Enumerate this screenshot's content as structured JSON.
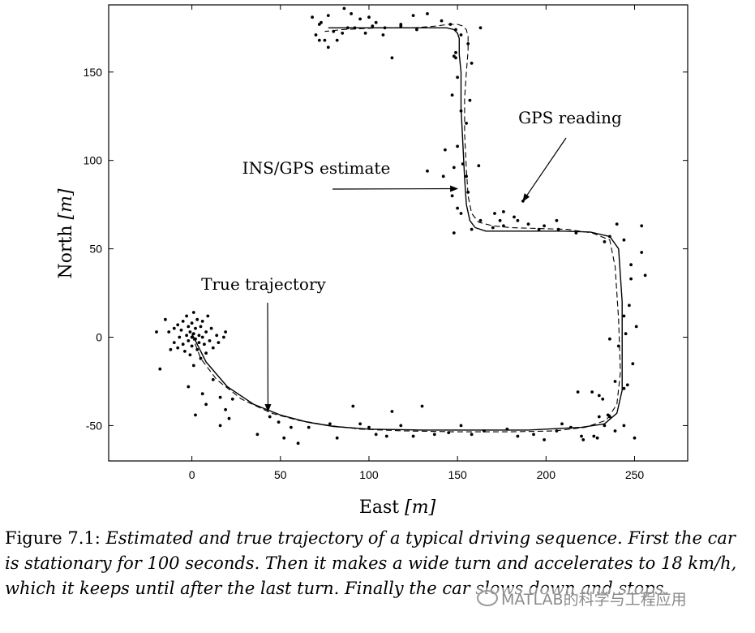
{
  "chart_data": {
    "type": "line",
    "xlabel_text": "East ",
    "xlabel_unit": "[m]",
    "ylabel_text": "North ",
    "ylabel_unit": "[m]",
    "xlim": [
      -47,
      280
    ],
    "ylim": [
      -70,
      188
    ],
    "xticks": [
      0,
      50,
      100,
      150,
      200,
      250
    ],
    "yticks": [
      -50,
      0,
      50,
      100,
      150
    ],
    "grid": false,
    "series": [
      {
        "name": "True trajectory",
        "style": "solid",
        "x": [
          0,
          8,
          20,
          35,
          50,
          65,
          80,
          100,
          130,
          160,
          190,
          220,
          233,
          240,
          243,
          243,
          243,
          241,
          236,
          225,
          210,
          195,
          180,
          166,
          160,
          157,
          155,
          154,
          153,
          152,
          152,
          151,
          151,
          151,
          150,
          148,
          144,
          135,
          115,
          95,
          77
        ],
        "y": [
          2,
          -14,
          -28,
          -38,
          -44,
          -48,
          -50.5,
          -52,
          -52.5,
          -52.5,
          -52.5,
          -51,
          -49,
          -43,
          -30,
          -10,
          20,
          50,
          57,
          59.5,
          60,
          60,
          60,
          60,
          62,
          66,
          75,
          90,
          110,
          130,
          150,
          160,
          166,
          169,
          172,
          174,
          175,
          175,
          175,
          175,
          175
        ]
      },
      {
        "name": "INS/GPS estimate",
        "style": "dashed",
        "x": [
          0,
          5,
          14,
          28,
          45,
          60,
          78,
          95,
          120,
          150,
          180,
          205,
          222,
          234,
          240,
          242,
          241,
          239,
          236,
          226,
          212,
          196,
          180,
          170,
          162,
          158,
          156,
          155,
          154,
          154,
          155,
          156,
          156,
          155,
          153,
          150,
          145,
          138,
          125,
          105,
          85,
          75
        ],
        "y": [
          1,
          -12,
          -24,
          -35,
          -43,
          -47,
          -50,
          -52,
          -53,
          -53.5,
          -53.5,
          -53,
          -51,
          -47,
          -38,
          -20,
          10,
          40,
          55,
          59,
          61,
          61.5,
          62,
          63,
          65,
          70,
          80,
          95,
          115,
          135,
          150,
          162,
          170,
          174,
          176,
          177,
          177,
          176,
          175,
          175,
          174,
          173
        ]
      },
      {
        "name": "GPS reading",
        "style": "dots",
        "points": [
          [
            -20,
            3
          ],
          [
            -18,
            -18
          ],
          [
            -15,
            10
          ],
          [
            -13,
            3
          ],
          [
            -12,
            -7
          ],
          [
            -10,
            5
          ],
          [
            -10,
            -3
          ],
          [
            -8,
            7
          ],
          [
            -8,
            -6
          ],
          [
            -7,
            0
          ],
          [
            -6,
            4
          ],
          [
            -5,
            -4
          ],
          [
            -5,
            9
          ],
          [
            -4,
            -8
          ],
          [
            -3,
            1
          ],
          [
            -3,
            12
          ],
          [
            -2,
            -2
          ],
          [
            -2,
            6
          ],
          [
            -1,
            -10
          ],
          [
            -1,
            3
          ],
          [
            0,
            0
          ],
          [
            0,
            8
          ],
          [
            0,
            -5
          ],
          [
            1,
            2
          ],
          [
            1,
            14
          ],
          [
            1,
            -16
          ],
          [
            2,
            -1
          ],
          [
            2,
            5
          ],
          [
            3,
            -7
          ],
          [
            3,
            10
          ],
          [
            4,
            1
          ],
          [
            4,
            -3
          ],
          [
            5,
            6
          ],
          [
            5,
            -12
          ],
          [
            6,
            0
          ],
          [
            6,
            9
          ],
          [
            7,
            -4
          ],
          [
            8,
            3
          ],
          [
            8,
            -9
          ],
          [
            9,
            12
          ],
          [
            10,
            -2
          ],
          [
            11,
            5
          ],
          [
            12,
            -6
          ],
          [
            14,
            1
          ],
          [
            15,
            -3
          ],
          [
            18,
            0
          ],
          [
            19,
            3
          ],
          [
            -2,
            -28
          ],
          [
            2,
            -44
          ],
          [
            6,
            -32
          ],
          [
            8,
            -38
          ],
          [
            12,
            -24
          ],
          [
            16,
            -34
          ],
          [
            16,
            -50
          ],
          [
            19,
            -41
          ],
          [
            21,
            -46
          ],
          [
            23,
            -35
          ],
          [
            37,
            -55
          ],
          [
            44,
            -45
          ],
          [
            49,
            -48
          ],
          [
            52,
            -57
          ],
          [
            56,
            -51
          ],
          [
            60,
            -60
          ],
          [
            66,
            -51
          ],
          [
            78,
            -49
          ],
          [
            82,
            -57
          ],
          [
            95,
            -49
          ],
          [
            100,
            -51
          ],
          [
            104,
            -55
          ],
          [
            110,
            -56
          ],
          [
            118,
            -50
          ],
          [
            125,
            -56
          ],
          [
            137,
            -55
          ],
          [
            145,
            -54
          ],
          [
            152,
            -50
          ],
          [
            158,
            -55
          ],
          [
            165,
            -53
          ],
          [
            178,
            -52
          ],
          [
            184,
            -56
          ],
          [
            193,
            -55
          ],
          [
            199,
            -58
          ],
          [
            206,
            -53
          ],
          [
            209,
            -49
          ],
          [
            214,
            -51
          ],
          [
            220,
            -56
          ],
          [
            227,
            -56
          ],
          [
            233,
            -50
          ],
          [
            239,
            -53
          ],
          [
            244,
            -50
          ],
          [
            250,
            -57
          ],
          [
            91,
            -39
          ],
          [
            113,
            -42
          ],
          [
            130,
            -39
          ],
          [
            218,
            -31
          ],
          [
            226,
            -31
          ],
          [
            235,
            -44
          ],
          [
            229,
            -57
          ],
          [
            221,
            -58
          ],
          [
            236,
            -45
          ],
          [
            230,
            -45
          ],
          [
            239,
            -25
          ],
          [
            232,
            -35
          ],
          [
            244,
            -29
          ],
          [
            230,
            -33
          ],
          [
            246,
            -27
          ],
          [
            249,
            -15
          ],
          [
            241,
            -5
          ],
          [
            245,
            2
          ],
          [
            244,
            12
          ],
          [
            236,
            -1
          ],
          [
            247,
            18
          ],
          [
            248,
            33
          ],
          [
            251,
            6
          ],
          [
            254,
            48
          ],
          [
            254,
            63
          ],
          [
            248,
            41
          ],
          [
            256,
            35
          ],
          [
            244,
            55
          ],
          [
            240,
            64
          ],
          [
            236,
            57
          ],
          [
            233,
            54
          ],
          [
            217,
            59
          ],
          [
            207,
            61
          ],
          [
            199,
            63
          ],
          [
            196,
            61
          ],
          [
            190,
            64
          ],
          [
            184,
            66
          ],
          [
            176,
            63
          ],
          [
            170,
            62
          ],
          [
            163,
            66
          ],
          [
            158,
            61
          ],
          [
            148,
            59
          ],
          [
            152,
            70
          ],
          [
            182,
            68
          ],
          [
            171,
            70
          ],
          [
            187,
            77
          ],
          [
            174,
            66
          ],
          [
            176,
            71
          ],
          [
            206,
            66
          ],
          [
            150,
            73
          ],
          [
            156,
            82
          ],
          [
            147,
            80
          ],
          [
            155,
            91
          ],
          [
            153,
            98
          ],
          [
            143,
            106
          ],
          [
            133,
            94
          ],
          [
            150,
            108
          ],
          [
            155,
            121
          ],
          [
            152,
            128
          ],
          [
            147,
            137
          ],
          [
            157,
            134
          ],
          [
            150,
            147
          ],
          [
            149,
            158
          ],
          [
            158,
            155
          ],
          [
            163,
            175
          ],
          [
            149,
            161
          ],
          [
            162,
            97
          ],
          [
            142,
            91
          ],
          [
            148,
            96
          ],
          [
            73,
            178
          ],
          [
            68,
            181
          ],
          [
            72,
            177
          ],
          [
            77,
            182
          ],
          [
            86,
            186
          ],
          [
            90,
            183
          ],
          [
            95,
            180
          ],
          [
            100,
            181
          ],
          [
            104,
            178
          ],
          [
            109,
            175
          ],
          [
            118,
            177
          ],
          [
            125,
            182
          ],
          [
            133,
            183
          ],
          [
            141,
            179
          ],
          [
            146,
            177
          ],
          [
            149,
            174
          ],
          [
            152,
            171
          ],
          [
            156,
            166
          ],
          [
            70,
            171
          ],
          [
            72,
            168
          ],
          [
            75,
            168
          ],
          [
            77,
            164
          ],
          [
            80,
            173
          ],
          [
            82,
            168
          ],
          [
            85,
            172
          ],
          [
            88,
            175
          ],
          [
            92,
            175
          ],
          [
            98,
            172
          ],
          [
            102,
            176
          ],
          [
            108,
            171
          ],
          [
            113,
            158
          ],
          [
            118,
            176
          ],
          [
            127,
            174
          ],
          [
            148,
            159
          ]
        ]
      }
    ],
    "annotations": [
      {
        "text": "GPS reading",
        "arrow_to": [
          187,
          77
        ]
      },
      {
        "text": "INS/GPS estimate",
        "arrow_to": [
          150,
          84
        ]
      },
      {
        "text": "True trajectory",
        "arrow_to": [
          43,
          -42
        ]
      }
    ]
  },
  "caption": {
    "lead": "Figure 7.1: ",
    "body": "Estimated and true trajectory of a typical driving sequence. First the car is stationary for 100 seconds. Then it makes a wide turn and accelerates to 18 km/h, which it keeps until after the last turn. Finally the car slows down and stops."
  },
  "watermark": {
    "text": "MATLAB的科学与工程应用"
  }
}
